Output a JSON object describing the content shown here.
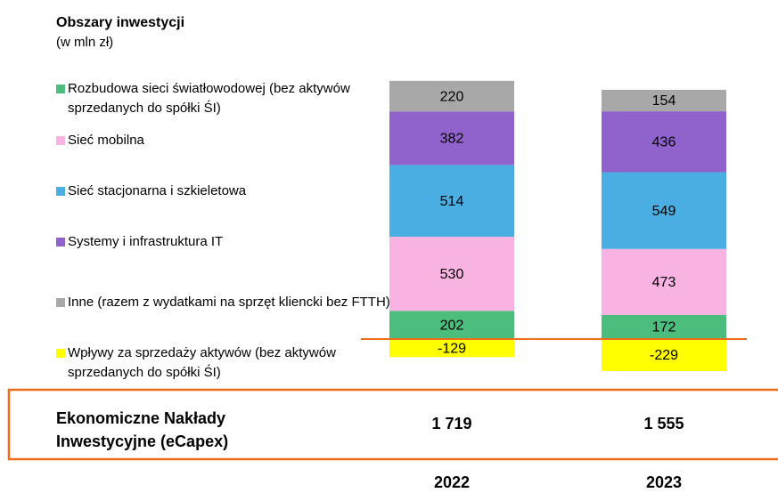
{
  "chart_data": {
    "type": "bar",
    "stacked": true,
    "title": "Obszary inwestycji",
    "subtitle": "(w mln zł)",
    "categories": [
      "2022",
      "2023"
    ],
    "series": [
      {
        "name": "Rozbudowa sieci światłowodowej (bez aktywów sprzedanych do spółki ŚI)",
        "color": "#4dbd7e",
        "values": [
          202,
          172
        ]
      },
      {
        "name": "Sieć mobilna",
        "color": "#f9b3e3",
        "values": [
          530,
          473
        ]
      },
      {
        "name": "Sieć stacjonarna i szkieletowa",
        "color": "#4aaee3",
        "values": [
          514,
          549
        ]
      },
      {
        "name": "Systemy i infrastruktura IT",
        "color": "#9063cc",
        "values": [
          382,
          436
        ]
      },
      {
        "name": "Inne (razem z wydatkami na sprzęt kliencki bez FTTH)",
        "color": "#a8a8a8",
        "values": [
          220,
          154
        ]
      },
      {
        "name": "Wpływy za sprzedaży aktywów (bez aktywów sprzedanych do spółki ŚI)",
        "color": "#ffff00",
        "values": [
          -129,
          -229
        ]
      }
    ],
    "totals": {
      "label": "Ekonomiczne Nakłady Inwestycyjne (eCapex)",
      "values": [
        1719,
        1555
      ],
      "value_labels": [
        "1 719",
        "1 555"
      ]
    }
  }
}
